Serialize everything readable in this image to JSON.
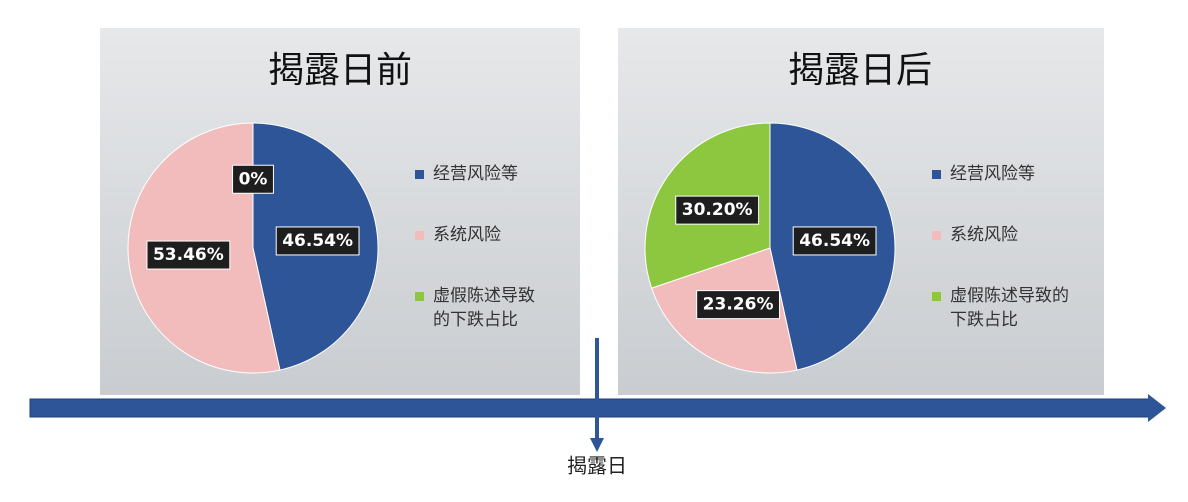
{
  "chart_data": [
    {
      "type": "pie",
      "title": "揭露日前",
      "categories": [
        "经营风险等",
        "系统风险",
        "虚假陈述导致的下跌占比"
      ],
      "values": [
        46.54,
        53.46,
        0
      ],
      "value_labels": [
        "46.54%",
        "53.46%",
        "0%"
      ],
      "colors": [
        "#2e5597",
        "#f2bcbc",
        "#8dc63f"
      ]
    },
    {
      "type": "pie",
      "title": "揭露日后",
      "categories": [
        "经营风险等",
        "系统风险",
        "虚假陈述导致的下跌占比"
      ],
      "values": [
        46.54,
        23.26,
        30.2
      ],
      "value_labels": [
        "46.54%",
        "23.26%",
        "30.20%"
      ],
      "colors": [
        "#2e5597",
        "#f2bcbc",
        "#8dc63f"
      ]
    }
  ],
  "timeline": {
    "label": "揭露日"
  }
}
